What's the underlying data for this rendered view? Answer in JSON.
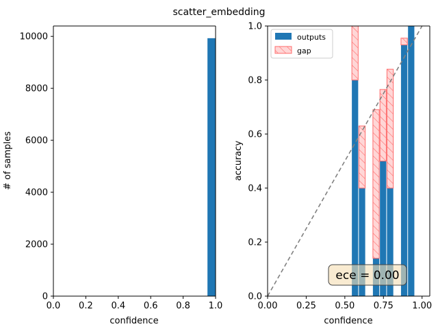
{
  "figure_title": "scatter_embedding",
  "chart_data": [
    {
      "type": "bar",
      "name": "histogram",
      "xlabel": "confidence",
      "ylabel": "# of samples",
      "xlim": [
        0.0,
        1.0
      ],
      "ylim": [
        0,
        10400
      ],
      "xticks": [
        "0.0",
        "0.2",
        "0.4",
        "0.6",
        "0.8",
        "1.0"
      ],
      "yticks": [
        "0",
        "2000",
        "4000",
        "6000",
        "8000",
        "10000"
      ],
      "bar_color": "#1f77b4",
      "bins": [
        {
          "x0": 0.55,
          "x1": 0.6,
          "value": 3
        },
        {
          "x0": 0.6,
          "x1": 0.65,
          "value": 5
        },
        {
          "x0": 0.65,
          "x1": 0.7,
          "value": 7
        },
        {
          "x0": 0.7,
          "x1": 0.75,
          "value": 7
        },
        {
          "x0": 0.8,
          "x1": 0.85,
          "value": 5
        },
        {
          "x0": 0.85,
          "x1": 0.9,
          "value": 5
        },
        {
          "x0": 0.9,
          "x1": 0.95,
          "value": 12
        },
        {
          "x0": 0.95,
          "x1": 1.0,
          "value": 9930
        }
      ]
    },
    {
      "type": "bar",
      "name": "reliability_diagram",
      "xlabel": "confidence",
      "ylabel": "accuracy",
      "xlim": [
        0.0,
        1.05
      ],
      "ylim": [
        0.0,
        1.0
      ],
      "xticks": [
        "0.00",
        "0.25",
        "0.50",
        "0.75",
        "1.00"
      ],
      "yticks": [
        "0.0",
        "0.2",
        "0.4",
        "0.6",
        "0.8",
        "1.0"
      ],
      "grid": false,
      "legend_position": "upper-left",
      "series": [
        {
          "name": "outputs",
          "color": "#1f77b4"
        },
        {
          "name": "gap",
          "color": "#ff0000",
          "hatch": "///"
        }
      ],
      "bins": [
        {
          "x0": 0.5455,
          "x1": 0.5909,
          "accuracy": 0.8,
          "confidence": 1.0
        },
        {
          "x0": 0.5909,
          "x1": 0.6364,
          "accuracy": 0.4,
          "confidence": 0.63
        },
        {
          "x0": 0.6364,
          "x1": 0.6818,
          "accuracy": 0.0,
          "confidence": 0.0
        },
        {
          "x0": 0.6818,
          "x1": 0.7273,
          "accuracy": 0.14,
          "confidence": 0.69
        },
        {
          "x0": 0.7273,
          "x1": 0.7727,
          "accuracy": 0.5,
          "confidence": 0.765
        },
        {
          "x0": 0.7727,
          "x1": 0.8182,
          "accuracy": 0.4,
          "confidence": 0.84
        },
        {
          "x0": 0.8182,
          "x1": 0.8636,
          "accuracy": 0.0,
          "confidence": 0.0
        },
        {
          "x0": 0.8636,
          "x1": 0.9091,
          "accuracy": 0.93,
          "confidence": 0.955
        },
        {
          "x0": 0.9091,
          "x1": 0.9545,
          "accuracy": 1.0,
          "confidence": 1.0
        }
      ],
      "diagonal": {
        "from": [
          0.0,
          0.0
        ],
        "to": [
          1.0,
          1.0
        ],
        "style": "dashed",
        "color": "#808080"
      },
      "annotation": "ece = 0.00"
    }
  ]
}
